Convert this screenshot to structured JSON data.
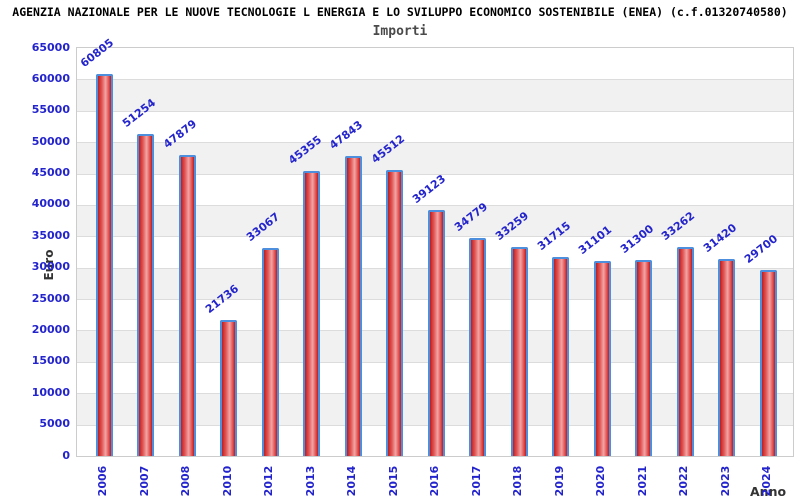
{
  "header": {
    "title": "AGENZIA NAZIONALE PER LE NUOVE TECNOLOGIE L ENERGIA E LO SVILUPPO ECONOMICO SOSTENIBILE (ENEA) (c.f.01320740580)"
  },
  "chart_data": {
    "type": "bar",
    "title": "Importi",
    "xlabel": "Anno",
    "ylabel": "Euro",
    "categories": [
      "2006",
      "2007",
      "2008",
      "2010",
      "2012",
      "2013",
      "2014",
      "2015",
      "2016",
      "2017",
      "2018",
      "2019",
      "2020",
      "2021",
      "2022",
      "2023",
      "2024"
    ],
    "values": [
      60805,
      51254,
      47879,
      21736,
      33067,
      45355,
      47843,
      45512,
      39123,
      34779,
      33259,
      31715,
      31101,
      31300,
      33262,
      31420,
      29700
    ],
    "ylim": [
      0,
      65000
    ],
    "ytick_step": 5000,
    "yticks": [
      0,
      5000,
      10000,
      15000,
      20000,
      25000,
      30000,
      35000,
      40000,
      45000,
      50000,
      55000,
      60000,
      65000
    ],
    "grid": "horizontal gridlines with alternating white/gray bands",
    "legend": "none",
    "colors": {
      "bar_fill_dark": "#bf1c1c",
      "bar_fill_light": "#f2a6a6",
      "bar_border": "#4e8fdd",
      "axis_text": "#2424cd",
      "band_gray": "#f1f1f1",
      "band_white": "#ffffff",
      "gridline": "#dcdcdc",
      "plot_border": "#cccccc",
      "title_text": "#000000",
      "subtitle_text": "#4a4a4a",
      "axis_title_text": "#333333"
    }
  }
}
